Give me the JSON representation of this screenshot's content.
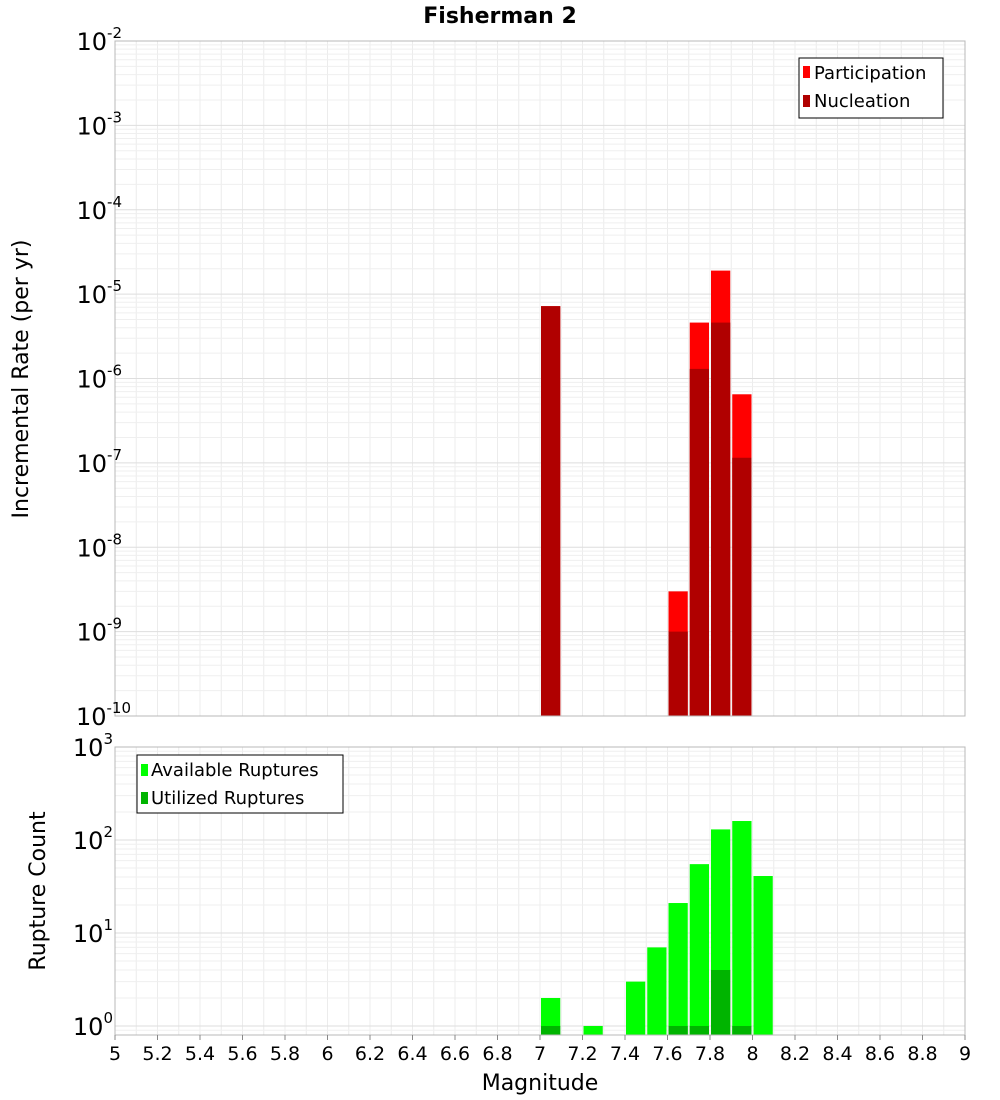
{
  "chart_data": [
    {
      "type": "bar",
      "title": "Fisherman 2",
      "xlabel": "",
      "ylabel": "Incremental Rate (per yr)",
      "ylim": [
        1e-10,
        0.01
      ],
      "yscale": "log",
      "grid": true,
      "legend_position": "top-right",
      "y_ticks": [
        {
          "mantissa": "10",
          "exp": "-10"
        },
        {
          "mantissa": "10",
          "exp": "-9"
        },
        {
          "mantissa": "10",
          "exp": "-8"
        },
        {
          "mantissa": "10",
          "exp": "-7"
        },
        {
          "mantissa": "10",
          "exp": "-6"
        },
        {
          "mantissa": "10",
          "exp": "-5"
        },
        {
          "mantissa": "10",
          "exp": "-4"
        },
        {
          "mantissa": "10",
          "exp": "-3"
        },
        {
          "mantissa": "10",
          "exp": "-2"
        }
      ],
      "series": [
        {
          "name": "Participation",
          "color": "#ff0000",
          "points": [
            {
              "x": 7.05,
              "y": 7.2e-06
            },
            {
              "x": 7.65,
              "y": 3e-09
            },
            {
              "x": 7.75,
              "y": 4.6e-06
            },
            {
              "x": 7.85,
              "y": 1.9e-05
            },
            {
              "x": 7.95,
              "y": 6.5e-07
            }
          ]
        },
        {
          "name": "Nucleation",
          "color": "#b00000",
          "points": [
            {
              "x": 7.05,
              "y": 7.2e-06
            },
            {
              "x": 7.65,
              "y": 1e-09
            },
            {
              "x": 7.75,
              "y": 1.3e-06
            },
            {
              "x": 7.85,
              "y": 4.6e-06
            },
            {
              "x": 7.95,
              "y": 1.15e-07
            }
          ]
        }
      ]
    },
    {
      "type": "bar",
      "title": "",
      "xlabel": "Magnitude",
      "ylabel": "Rupture Count",
      "xlim": [
        5,
        9
      ],
      "ylim": [
        0.8,
        1000
      ],
      "yscale": "log",
      "grid": true,
      "legend_position": "top-left",
      "x_ticks": [
        "5",
        "5.2",
        "5.4",
        "5.6",
        "5.8",
        "6",
        "6.2",
        "6.4",
        "6.6",
        "6.8",
        "7",
        "7.2",
        "7.4",
        "7.6",
        "7.8",
        "8",
        "8.2",
        "8.4",
        "8.6",
        "8.8",
        "9"
      ],
      "y_ticks": [
        {
          "mantissa": "10",
          "exp": "0"
        },
        {
          "mantissa": "10",
          "exp": "1"
        },
        {
          "mantissa": "10",
          "exp": "2"
        },
        {
          "mantissa": "10",
          "exp": "3"
        }
      ],
      "series": [
        {
          "name": "Available Ruptures",
          "color": "#00ff00",
          "points": [
            {
              "x": 7.05,
              "y": 2
            },
            {
              "x": 7.25,
              "y": 1
            },
            {
              "x": 7.45,
              "y": 3
            },
            {
              "x": 7.55,
              "y": 7
            },
            {
              "x": 7.65,
              "y": 21
            },
            {
              "x": 7.75,
              "y": 55
            },
            {
              "x": 7.85,
              "y": 130
            },
            {
              "x": 7.95,
              "y": 160
            },
            {
              "x": 8.05,
              "y": 41
            }
          ]
        },
        {
          "name": "Utilized Ruptures",
          "color": "#00b400",
          "points": [
            {
              "x": 7.05,
              "y": 1
            },
            {
              "x": 7.65,
              "y": 1
            },
            {
              "x": 7.75,
              "y": 1
            },
            {
              "x": 7.85,
              "y": 4
            },
            {
              "x": 7.95,
              "y": 1
            }
          ]
        }
      ]
    }
  ]
}
